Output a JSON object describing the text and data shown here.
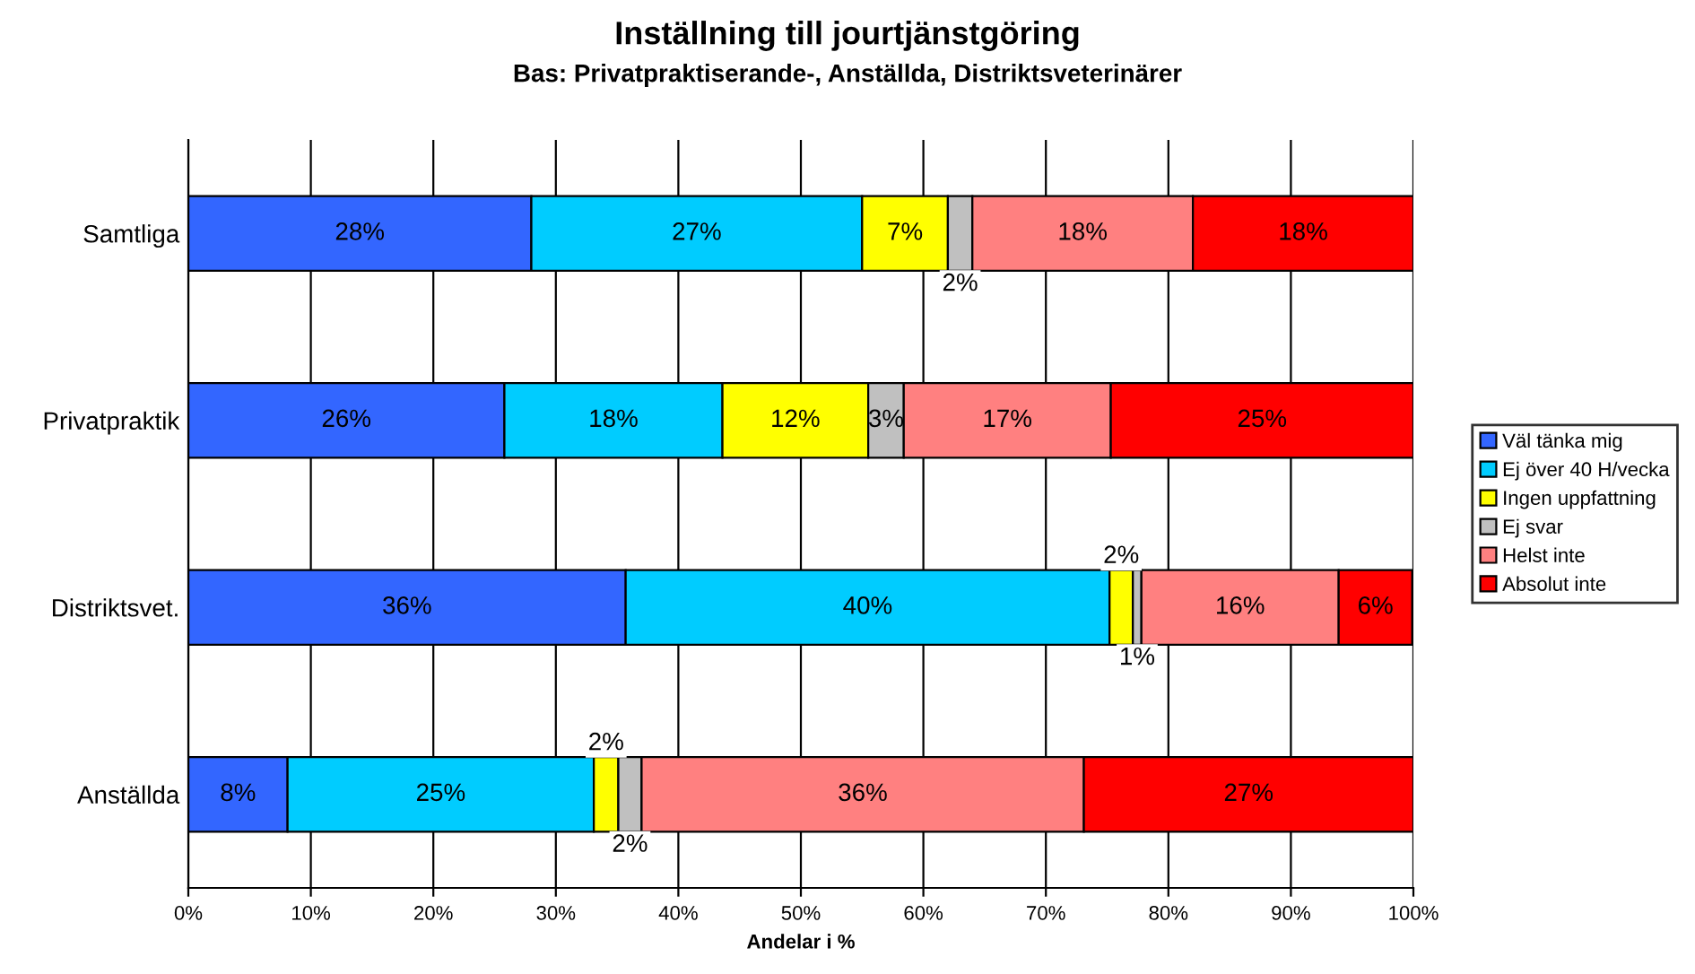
{
  "chart_data": {
    "type": "bar",
    "orientation": "horizontal",
    "stacked": true,
    "title": "Inställning till jourtjänstgöring",
    "subtitle": "Bas: Privatpraktiserande-, Anställda, Distriktsveterinärer",
    "xlabel": "Andelar i %",
    "categories": [
      "Samtliga",
      "Privatpraktik",
      "Distriktsvet.",
      "Anställda"
    ],
    "xlim": [
      0,
      100
    ],
    "xticks": [
      {
        "value": 0,
        "label": "0%"
      },
      {
        "value": 10,
        "label": "10%"
      },
      {
        "value": 20,
        "label": "20%"
      },
      {
        "value": 30,
        "label": "30%"
      },
      {
        "value": 40,
        "label": "40%"
      },
      {
        "value": 50,
        "label": "50%"
      },
      {
        "value": 60,
        "label": "60%"
      },
      {
        "value": 70,
        "label": "70%"
      },
      {
        "value": 80,
        "label": "80%"
      },
      {
        "value": 90,
        "label": "90%"
      },
      {
        "value": 100,
        "label": "100%"
      }
    ],
    "grid": "x",
    "legend": "right",
    "series": [
      {
        "name": "Väl tänka mig",
        "color": "#3366ff",
        "values": [
          28,
          25.8,
          35.7,
          8.1
        ],
        "value_labels": [
          "28%",
          "26%",
          "36%",
          "8%"
        ]
      },
      {
        "name": "Ej över 40 H/vecka",
        "color": "#00ccff",
        "values": [
          27,
          17.8,
          39.5,
          25
        ],
        "value_labels": [
          "27%",
          "18%",
          "40%",
          "25%"
        ]
      },
      {
        "name": "Ingen uppfattning",
        "color": "#ffff00",
        "values": [
          7,
          11.9,
          1.9,
          2
        ],
        "value_labels": [
          "7%",
          "12%",
          "2%",
          "2%"
        ]
      },
      {
        "name": "Ej svar",
        "color": "#c0c0c0",
        "values": [
          2,
          2.9,
          0.7,
          1.9
        ],
        "value_labels": [
          "2%",
          "3%",
          "1%",
          "2%"
        ]
      },
      {
        "name": "Helst inte",
        "color": "#ff8080",
        "values": [
          18,
          16.9,
          16.1,
          36.1
        ],
        "value_labels": [
          "18%",
          "17%",
          "16%",
          "36%"
        ]
      },
      {
        "name": "Absolut inte",
        "color": "#ff0000",
        "values": [
          18,
          24.7,
          6,
          26.9
        ],
        "value_labels": [
          "18%",
          "25%",
          "6%",
          "27%"
        ]
      }
    ]
  }
}
